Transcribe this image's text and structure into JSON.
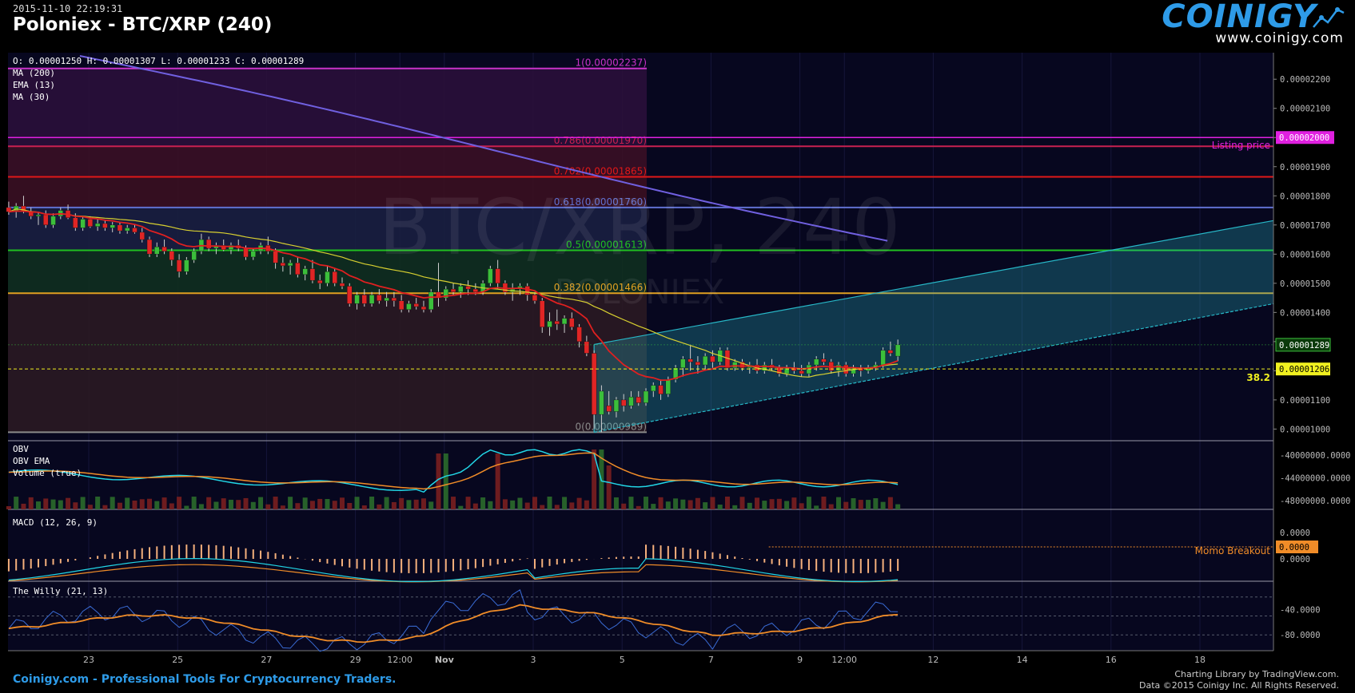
{
  "header": {
    "timestamp": "2015-11-10 22:19:31",
    "title": "Poloniex - BTC/XRP (240)",
    "logo_text": "COINIGY",
    "logo_url": "www.coinigy.com"
  },
  "footer": {
    "left": "Coinigy.com - Professional Tools For Cryptocurrency Traders.",
    "right_line1": "Charting Library by TradingView.com.",
    "right_line2": "Data ©2015 Coinigy Inc. All Rights Reserved."
  },
  "colors": {
    "background": "#07071f",
    "candle_up": "#3bbf3b",
    "candle_down": "#e02525",
    "ma200": "#7060e0",
    "ema13": "#e02020",
    "ma30": "#d8d030",
    "channel": "#27b7c7",
    "obv": "#22d6e6",
    "obv_ema": "#f08c28",
    "macd_hist": "#f5b07c",
    "willy": "#3a6cd6",
    "willy_signal": "#f08c28",
    "listing": "#e020e0"
  },
  "chart_data": [
    {
      "type": "candlestick",
      "title": "Poloniex - BTC/XRP (240)",
      "watermark": "BTC/XRP, 240",
      "watermark_sub": "POLONIEX",
      "ohlc_legend": "O: 0.00001250 H: 0.00001307 L: 0.00001233 C: 0.00001289",
      "indicators": [
        "MA (200)",
        "EMA (13)",
        "MA (30)"
      ],
      "x_ticks": [
        "23",
        "25",
        "27",
        "29",
        "12:00",
        "Nov",
        "3",
        "5",
        "7",
        "9",
        "12:00",
        "12",
        "14",
        "16",
        "18"
      ],
      "y_ticks": [
        "0.00002200",
        "0.00002100",
        "0.00002000",
        "0.00001900",
        "0.00001800",
        "0.00001700",
        "0.00001600",
        "0.00001500",
        "0.00001400",
        "0.00001300",
        "0.00001200",
        "0.00001100",
        "0.00001000"
      ],
      "ylim": [
        9.6e-06,
        2.28e-05
      ],
      "fibonacci": [
        {
          "level": "1",
          "price": "0.00002237",
          "label": "1(0.00002237)",
          "color": "#c832c8"
        },
        {
          "level": "0.786",
          "price": "0.00001970",
          "label": "0.786(0.00001970)",
          "color": "#c82050"
        },
        {
          "level": "0.702",
          "price": "0.00001865",
          "label": "0.702(0.00001865)",
          "color": "#e01818"
        },
        {
          "level": "0.618",
          "price": "0.00001760",
          "label": "0.618(0.00001760)",
          "color": "#6070d0"
        },
        {
          "level": "0.5",
          "price": "0.00001613",
          "label": "0.5(0.00001613)",
          "color": "#20c020"
        },
        {
          "level": "0.382",
          "price": "0.00001466",
          "label": "0.382(0.00001466)",
          "color": "#e0a020"
        },
        {
          "level": "0",
          "price": "0.00000989",
          "label": "0(0.00000989)",
          "color": "#8a8a8a"
        }
      ],
      "listing_price": {
        "label": "Listing price",
        "value": "0.00002000"
      },
      "last_price": "0.00001289",
      "line_price": "0.00001206",
      "line_label": "38.2",
      "candles": [
        [
          1.76e-05,
          1.78e-05,
          1.735e-05,
          1.745e-05
        ],
        [
          1.745e-05,
          1.775e-05,
          1.725e-05,
          1.765e-05
        ],
        [
          1.765e-05,
          1.8e-05,
          1.74e-05,
          1.745e-05
        ],
        [
          1.745e-05,
          1.76e-05,
          1.72e-05,
          1.73e-05
        ],
        [
          1.73e-05,
          1.745e-05,
          1.7e-05,
          1.735e-05
        ],
        [
          1.735e-05,
          1.75e-05,
          1.69e-05,
          1.7e-05
        ],
        [
          1.7e-05,
          1.74e-05,
          1.69e-05,
          1.73e-05
        ],
        [
          1.73e-05,
          1.76e-05,
          1.72e-05,
          1.75e-05
        ],
        [
          1.75e-05,
          1.77e-05,
          1.72e-05,
          1.725e-05
        ],
        [
          1.725e-05,
          1.74e-05,
          1.68e-05,
          1.69e-05
        ],
        [
          1.69e-05,
          1.73e-05,
          1.68e-05,
          1.72e-05
        ],
        [
          1.72e-05,
          1.73e-05,
          1.69e-05,
          1.695e-05
        ],
        [
          1.695e-05,
          1.72e-05,
          1.68e-05,
          1.705e-05
        ],
        [
          1.705e-05,
          1.715e-05,
          1.68e-05,
          1.69e-05
        ],
        [
          1.69e-05,
          1.71e-05,
          1.675e-05,
          1.7e-05
        ],
        [
          1.7e-05,
          1.71e-05,
          1.67e-05,
          1.68e-05
        ],
        [
          1.68e-05,
          1.7e-05,
          1.67e-05,
          1.69e-05
        ],
        [
          1.69e-05,
          1.7e-05,
          1.67e-05,
          1.675e-05
        ],
        [
          1.675e-05,
          1.69e-05,
          1.64e-05,
          1.65e-05
        ],
        [
          1.65e-05,
          1.66e-05,
          1.59e-05,
          1.6e-05
        ],
        [
          1.6e-05,
          1.64e-05,
          1.59e-05,
          1.625e-05
        ],
        [
          1.625e-05,
          1.65e-05,
          1.6e-05,
          1.61e-05
        ],
        [
          1.61e-05,
          1.62e-05,
          1.56e-05,
          1.58e-05
        ],
        [
          1.58e-05,
          1.6e-05,
          1.52e-05,
          1.54e-05
        ],
        [
          1.54e-05,
          1.59e-05,
          1.53e-05,
          1.58e-05
        ],
        [
          1.58e-05,
          1.62e-05,
          1.57e-05,
          1.61e-05
        ],
        [
          1.61e-05,
          1.67e-05,
          1.6e-05,
          1.65e-05
        ],
        [
          1.65e-05,
          1.66e-05,
          1.61e-05,
          1.62e-05
        ],
        [
          1.62e-05,
          1.64e-05,
          1.6e-05,
          1.63e-05
        ],
        [
          1.63e-05,
          1.65e-05,
          1.61e-05,
          1.615e-05
        ],
        [
          1.615e-05,
          1.64e-05,
          1.6e-05,
          1.63e-05
        ],
        [
          1.63e-05,
          1.65e-05,
          1.61e-05,
          1.62e-05
        ],
        [
          1.62e-05,
          1.63e-05,
          1.58e-05,
          1.59e-05
        ],
        [
          1.59e-05,
          1.62e-05,
          1.58e-05,
          1.61e-05
        ],
        [
          1.61e-05,
          1.64e-05,
          1.6e-05,
          1.63e-05
        ],
        [
          1.63e-05,
          1.66e-05,
          1.6e-05,
          1.61e-05
        ],
        [
          1.61e-05,
          1.62e-05,
          1.55e-05,
          1.57e-05
        ],
        [
          1.57e-05,
          1.59e-05,
          1.54e-05,
          1.56e-05
        ],
        [
          1.56e-05,
          1.58e-05,
          1.53e-05,
          1.57e-05
        ],
        [
          1.57e-05,
          1.59e-05,
          1.52e-05,
          1.53e-05
        ],
        [
          1.53e-05,
          1.56e-05,
          1.51e-05,
          1.55e-05
        ],
        [
          1.55e-05,
          1.58e-05,
          1.5e-05,
          1.51e-05
        ],
        [
          1.51e-05,
          1.53e-05,
          1.48e-05,
          1.5e-05
        ],
        [
          1.5e-05,
          1.56e-05,
          1.49e-05,
          1.54e-05
        ],
        [
          1.54e-05,
          1.55e-05,
          1.49e-05,
          1.5e-05
        ],
        [
          1.5e-05,
          1.52e-05,
          1.48e-05,
          1.49e-05
        ],
        [
          1.49e-05,
          1.5e-05,
          1.42e-05,
          1.43e-05
        ],
        [
          1.43e-05,
          1.47e-05,
          1.41e-05,
          1.46e-05
        ],
        [
          1.46e-05,
          1.48e-05,
          1.42e-05,
          1.43e-05
        ],
        [
          1.43e-05,
          1.47e-05,
          1.42e-05,
          1.46e-05
        ],
        [
          1.46e-05,
          1.48e-05,
          1.43e-05,
          1.44e-05
        ],
        [
          1.44e-05,
          1.47e-05,
          1.42e-05,
          1.45e-05
        ],
        [
          1.45e-05,
          1.47e-05,
          1.42e-05,
          1.44e-05
        ],
        [
          1.44e-05,
          1.46e-05,
          1.4e-05,
          1.41e-05
        ],
        [
          1.41e-05,
          1.44e-05,
          1.4e-05,
          1.43e-05
        ],
        [
          1.43e-05,
          1.45e-05,
          1.41e-05,
          1.42e-05
        ],
        [
          1.42e-05,
          1.44e-05,
          1.4e-05,
          1.41e-05
        ],
        [
          1.41e-05,
          1.48e-05,
          1.4e-05,
          1.47e-05
        ],
        [
          1.47e-05,
          1.57e-05,
          1.42e-05,
          1.45e-05
        ],
        [
          1.45e-05,
          1.49e-05,
          1.44e-05,
          1.48e-05
        ],
        [
          1.48e-05,
          1.5e-05,
          1.46e-05,
          1.47e-05
        ],
        [
          1.47e-05,
          1.5e-05,
          1.45e-05,
          1.49e-05
        ],
        [
          1.49e-05,
          1.51e-05,
          1.46e-05,
          1.48e-05
        ],
        [
          1.48e-05,
          1.5e-05,
          1.46e-05,
          1.47e-05
        ],
        [
          1.47e-05,
          1.51e-05,
          1.46e-05,
          1.5e-05
        ],
        [
          1.5e-05,
          1.56e-05,
          1.49e-05,
          1.55e-05
        ],
        [
          1.55e-05,
          1.58e-05,
          1.48e-05,
          1.5e-05
        ],
        [
          1.5e-05,
          1.51e-05,
          1.46e-05,
          1.47e-05
        ],
        [
          1.47e-05,
          1.5e-05,
          1.44e-05,
          1.48e-05
        ],
        [
          1.48e-05,
          1.5e-05,
          1.46e-05,
          1.49e-05
        ],
        [
          1.49e-05,
          1.5e-05,
          1.44e-05,
          1.46e-05
        ],
        [
          1.46e-05,
          1.47e-05,
          1.43e-05,
          1.44e-05
        ],
        [
          1.44e-05,
          1.45e-05,
          1.33e-05,
          1.35e-05
        ],
        [
          1.35e-05,
          1.4e-05,
          1.32e-05,
          1.37e-05
        ],
        [
          1.37e-05,
          1.41e-05,
          1.34e-05,
          1.36e-05
        ],
        [
          1.36e-05,
          1.39e-05,
          1.33e-05,
          1.38e-05
        ],
        [
          1.38e-05,
          1.4e-05,
          1.34e-05,
          1.35e-05
        ],
        [
          1.35e-05,
          1.36e-05,
          1.28e-05,
          1.3e-05
        ],
        [
          1.3e-05,
          1.32e-05,
          1.25e-05,
          1.26e-05
        ],
        [
          1.26e-05,
          1.27e-05,
          1e-05,
          1.05e-05
        ],
        [
          1.05e-05,
          1.15e-05,
          9.89e-06,
          1.13e-05
        ],
        [
          1.08e-05,
          1.13e-05,
          1.05e-05,
          1.06e-05
        ],
        [
          1.06e-05,
          1.11e-05,
          1.04e-05,
          1.1e-05
        ],
        [
          1.1e-05,
          1.12e-05,
          1.06e-05,
          1.08e-05
        ],
        [
          1.08e-05,
          1.13e-05,
          1.07e-05,
          1.11e-05
        ],
        [
          1.11e-05,
          1.13e-05,
          1.08e-05,
          1.09e-05
        ],
        [
          1.09e-05,
          1.14e-05,
          1.08e-05,
          1.13e-05
        ],
        [
          1.13e-05,
          1.16e-05,
          1.11e-05,
          1.15e-05
        ],
        [
          1.15e-05,
          1.17e-05,
          1.1e-05,
          1.12e-05
        ],
        [
          1.12e-05,
          1.18e-05,
          1.11e-05,
          1.17e-05
        ],
        [
          1.17e-05,
          1.22e-05,
          1.16e-05,
          1.21e-05
        ],
        [
          1.21e-05,
          1.25e-05,
          1.18e-05,
          1.24e-05
        ],
        [
          1.24e-05,
          1.29e-05,
          1.2e-05,
          1.23e-05
        ],
        [
          1.23e-05,
          1.25e-05,
          1.19e-05,
          1.22e-05
        ],
        [
          1.22e-05,
          1.26e-05,
          1.2e-05,
          1.25e-05
        ],
        [
          1.25e-05,
          1.27e-05,
          1.21e-05,
          1.23e-05
        ],
        [
          1.23e-05,
          1.28e-05,
          1.22e-05,
          1.27e-05
        ],
        [
          1.27e-05,
          1.28e-05,
          1.2e-05,
          1.21e-05
        ],
        [
          1.21e-05,
          1.24e-05,
          1.2e-05,
          1.23e-05
        ],
        [
          1.23e-05,
          1.24e-05,
          1.2e-05,
          1.21e-05
        ],
        [
          1.21e-05,
          1.23e-05,
          1.19e-05,
          1.22e-05
        ],
        [
          1.22e-05,
          1.24e-05,
          1.19e-05,
          1.2e-05
        ],
        [
          1.2e-05,
          1.23e-05,
          1.19e-05,
          1.22e-05
        ],
        [
          1.22e-05,
          1.24e-05,
          1.2e-05,
          1.21e-05
        ],
        [
          1.21e-05,
          1.22e-05,
          1.18e-05,
          1.19e-05
        ],
        [
          1.19e-05,
          1.22e-05,
          1.18e-05,
          1.21e-05
        ],
        [
          1.21e-05,
          1.23e-05,
          1.19e-05,
          1.2e-05
        ],
        [
          1.2e-05,
          1.22e-05,
          1.18e-05,
          1.19e-05
        ],
        [
          1.19e-05,
          1.23e-05,
          1.18e-05,
          1.22e-05
        ],
        [
          1.22e-05,
          1.25e-05,
          1.2e-05,
          1.24e-05
        ],
        [
          1.24e-05,
          1.26e-05,
          1.22e-05,
          1.23e-05
        ],
        [
          1.23e-05,
          1.24e-05,
          1.19e-05,
          1.2e-05
        ],
        [
          1.2e-05,
          1.23e-05,
          1.18e-05,
          1.22e-05
        ],
        [
          1.22e-05,
          1.23e-05,
          1.18e-05,
          1.19e-05
        ],
        [
          1.19e-05,
          1.22e-05,
          1.18e-05,
          1.21e-05
        ],
        [
          1.21e-05,
          1.22e-05,
          1.18e-05,
          1.2e-05
        ],
        [
          1.2e-05,
          1.22e-05,
          1.19e-05,
          1.21e-05
        ],
        [
          1.21e-05,
          1.23e-05,
          1.2e-05,
          1.22e-05
        ],
        [
          1.22e-05,
          1.28e-05,
          1.21e-05,
          1.27e-05
        ],
        [
          1.27e-05,
          1.3e-05,
          1.25e-05,
          1.26e-05
        ],
        [
          1.25e-05,
          1.307e-05,
          1.233e-05,
          1.289e-05
        ]
      ],
      "start_x_day": 21.2,
      "candle_step_days": 0.1667
    },
    {
      "type": "line+bar",
      "legend": [
        "OBV",
        "OBV EMA",
        "Volume (true)"
      ],
      "y_ticks": [
        "-40000000.0000",
        "-44000000.0000",
        "-48000000.0000"
      ],
      "ylim": [
        -49000000,
        -38000000
      ]
    },
    {
      "type": "histogram+line",
      "legend": [
        "MACD (12, 26, 9)"
      ],
      "y_ticks": [
        "0.0000",
        "0.0000"
      ],
      "current_value": "0.0000",
      "annotation": "Momo Breakout"
    },
    {
      "type": "line",
      "legend": [
        "The Willy (21, 13)"
      ],
      "y_ticks": [
        "-40.0000",
        "-80.0000"
      ],
      "ylim": [
        -100,
        0
      ]
    }
  ]
}
